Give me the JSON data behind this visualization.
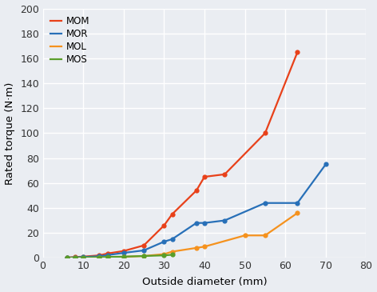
{
  "series": {
    "MOM": {
      "x": [
        6,
        8,
        10,
        14,
        16,
        20,
        25,
        30,
        32,
        38,
        40,
        45,
        55,
        63
      ],
      "y": [
        0.3,
        0.6,
        1.0,
        2.0,
        3.5,
        5.5,
        10,
        26,
        35,
        54,
        65,
        67,
        100,
        165
      ],
      "color": "#e8411a",
      "marker": "o"
    },
    "MOR": {
      "x": [
        6,
        8,
        10,
        14,
        16,
        20,
        25,
        30,
        32,
        38,
        40,
        45,
        55,
        63,
        70
      ],
      "y": [
        0.2,
        0.4,
        0.7,
        1.3,
        2.2,
        4.0,
        6,
        13,
        15,
        28,
        28,
        30,
        44,
        44,
        75
      ],
      "color": "#2870b8",
      "marker": "o"
    },
    "MOL": {
      "x": [
        14,
        16,
        20,
        25,
        30,
        32,
        38,
        40,
        50,
        55,
        63
      ],
      "y": [
        0.2,
        0.3,
        0.8,
        1.5,
        3.0,
        5.0,
        8,
        9,
        18,
        18,
        36
      ],
      "color": "#f5921e",
      "marker": "o"
    },
    "MOS": {
      "x": [
        6,
        8,
        10,
        14,
        16,
        20,
        25,
        30,
        32
      ],
      "y": [
        0.1,
        0.2,
        0.3,
        0.5,
        0.7,
        1.0,
        1.5,
        2.0,
        2.5
      ],
      "color": "#5a9e2a",
      "marker": "o"
    }
  },
  "xlabel": "Outside diameter (mm)",
  "ylabel": "Rated torque (N·m)",
  "xlim": [
    0,
    80
  ],
  "ylim": [
    0,
    200
  ],
  "xticks": [
    0,
    10,
    20,
    30,
    40,
    50,
    60,
    70,
    80
  ],
  "yticks": [
    0,
    20,
    40,
    60,
    80,
    100,
    120,
    140,
    160,
    180,
    200
  ],
  "background_color": "#eaedf2",
  "grid_color": "#ffffff",
  "legend_loc": "upper left",
  "linewidth": 1.6,
  "markersize": 4.5
}
